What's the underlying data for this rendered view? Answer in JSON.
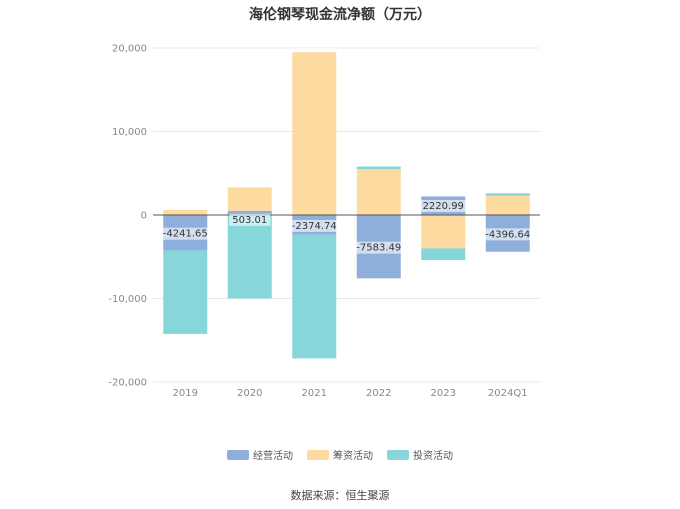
{
  "chart_data": {
    "type": "bar",
    "stacked": true,
    "title": "海伦钢琴现金流净额（万元）",
    "categories": [
      "2019",
      "2020",
      "2021",
      "2022",
      "2023",
      "2024Q1"
    ],
    "yticks": [
      "20,000",
      "10,000",
      "0",
      "-10,000",
      "-20,000"
    ],
    "ylim": [
      -20000,
      20000
    ],
    "legend_position": "bottom",
    "series": [
      {
        "name": "经营活动",
        "color": "#8eaedc",
        "values": [
          -4241.65,
          503.01,
          -2374.74,
          -7583.49,
          2220.99,
          -4396.64
        ]
      },
      {
        "name": "筹资活动",
        "color": "#fddaa0",
        "values": [
          600,
          2800,
          19500,
          5500,
          -4000,
          2300
        ]
      },
      {
        "name": "投资活动",
        "color": "#86d6da",
        "values": [
          -10000,
          -10000,
          -14800,
          300,
          -1400,
          300
        ]
      }
    ],
    "data_labels": [
      "-4241.65",
      "503.01",
      "-2374.74",
      "-7583.49",
      "2220.99",
      "-4396.64"
    ]
  },
  "source": "数据来源：恒生聚源"
}
